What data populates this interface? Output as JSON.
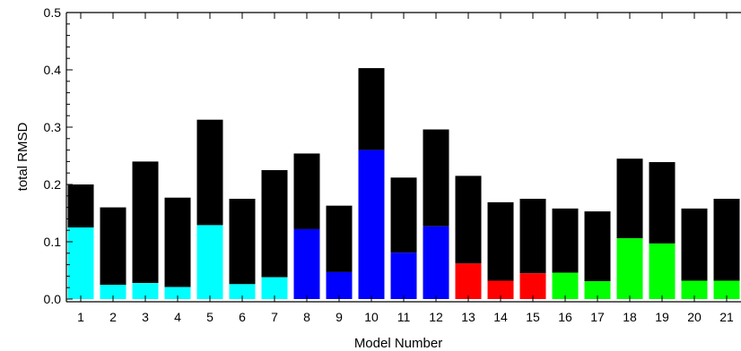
{
  "chart_data": {
    "type": "bar",
    "stacked": true,
    "xlabel": "Model Number",
    "ylabel": "total RMSD",
    "ylim": [
      0,
      0.5
    ],
    "yticks": [
      0.0,
      0.1,
      0.2,
      0.3,
      0.4,
      0.5
    ],
    "ytick_labels": [
      "0.0",
      "0.1",
      "0.2",
      "0.3",
      "0.4",
      "0.5"
    ],
    "categories": [
      "1",
      "2",
      "3",
      "4",
      "5",
      "6",
      "7",
      "8",
      "9",
      "10",
      "11",
      "12",
      "13",
      "14",
      "15",
      "16",
      "17",
      "18",
      "19",
      "20",
      "21"
    ],
    "series": [
      {
        "values": [
          0.125,
          0.025,
          0.028,
          0.021,
          0.129,
          0.026,
          0.038,
          0.122,
          0.047,
          0.26,
          0.081,
          0.127,
          0.062,
          0.032,
          0.045,
          0.046,
          0.031,
          0.106,
          0.097,
          0.032,
          0.032
        ]
      },
      {
        "values": [
          0.075,
          0.135,
          0.212,
          0.156,
          0.184,
          0.149,
          0.187,
          0.132,
          0.116,
          0.143,
          0.131,
          0.169,
          0.153,
          0.137,
          0.13,
          0.112,
          0.122,
          0.139,
          0.142,
          0.126,
          0.143
        ]
      }
    ],
    "category_colors": [
      "#00ffff",
      "#00ffff",
      "#00ffff",
      "#00ffff",
      "#00ffff",
      "#00ffff",
      "#00ffff",
      "#0000ff",
      "#0000ff",
      "#0000ff",
      "#0000ff",
      "#0000ff",
      "#ff0000",
      "#ff0000",
      "#ff0000",
      "#00ff00",
      "#00ff00",
      "#00ff00",
      "#00ff00",
      "#00ff00",
      "#00ff00"
    ],
    "top_segment_color": "#000000",
    "grid": false
  }
}
